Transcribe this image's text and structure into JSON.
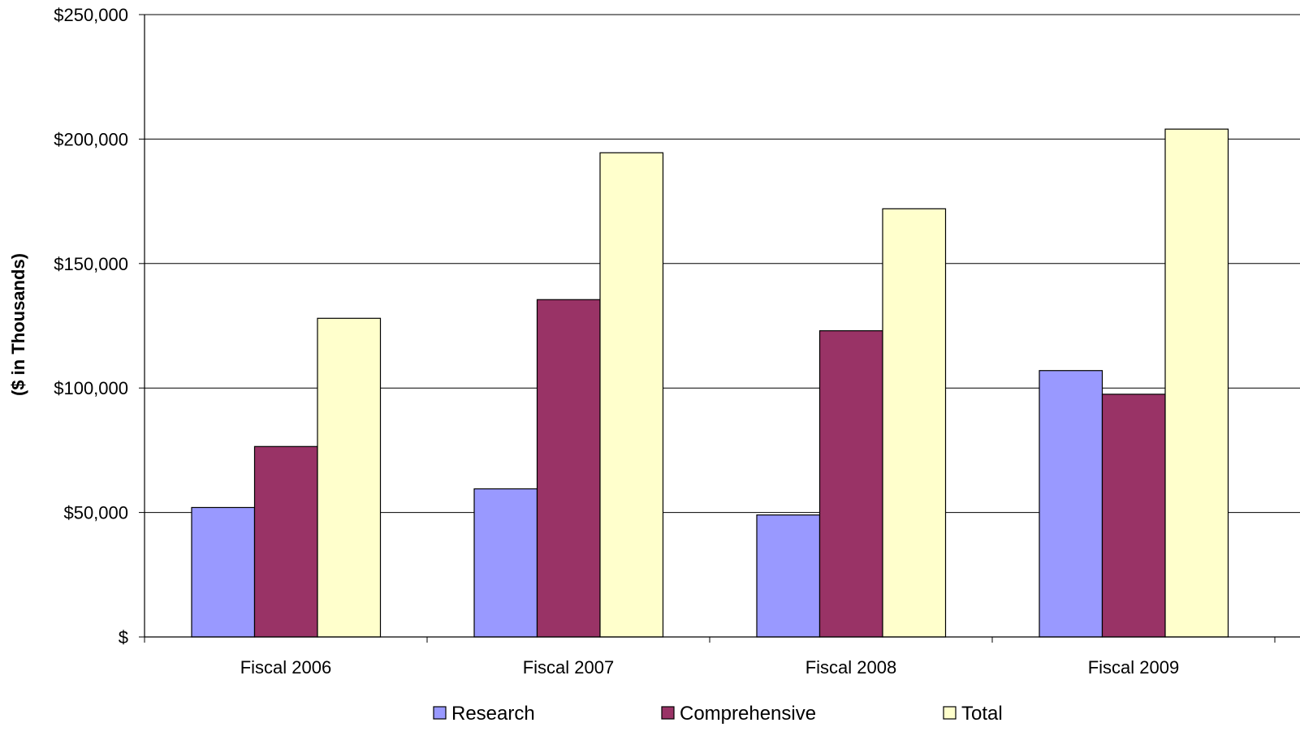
{
  "chart_data": {
    "type": "bar",
    "title": "",
    "xlabel": "",
    "ylabel": "($ in Thousands)",
    "categories": [
      "Fiscal 2006",
      "Fiscal 2007",
      "Fiscal 2008",
      "Fiscal 2009"
    ],
    "series": [
      {
        "name": "Research",
        "color": "#9999ff",
        "values": [
          52000,
          59500,
          49000,
          107000
        ]
      },
      {
        "name": "Comprehensive",
        "color": "#993366",
        "values": [
          76500,
          135500,
          123000,
          97500
        ]
      },
      {
        "name": "Total",
        "color": "#ffffcc",
        "values": [
          128000,
          194500,
          172000,
          204000
        ]
      }
    ],
    "ylim": [
      0,
      250000
    ],
    "yticks": [
      0,
      50000,
      100000,
      150000,
      200000,
      250000
    ],
    "ytick_labels": [
      "$",
      "$50,000",
      "$100,000",
      "$150,000",
      "$200,000",
      "$250,000"
    ],
    "grid": true,
    "legend_position": "bottom"
  }
}
